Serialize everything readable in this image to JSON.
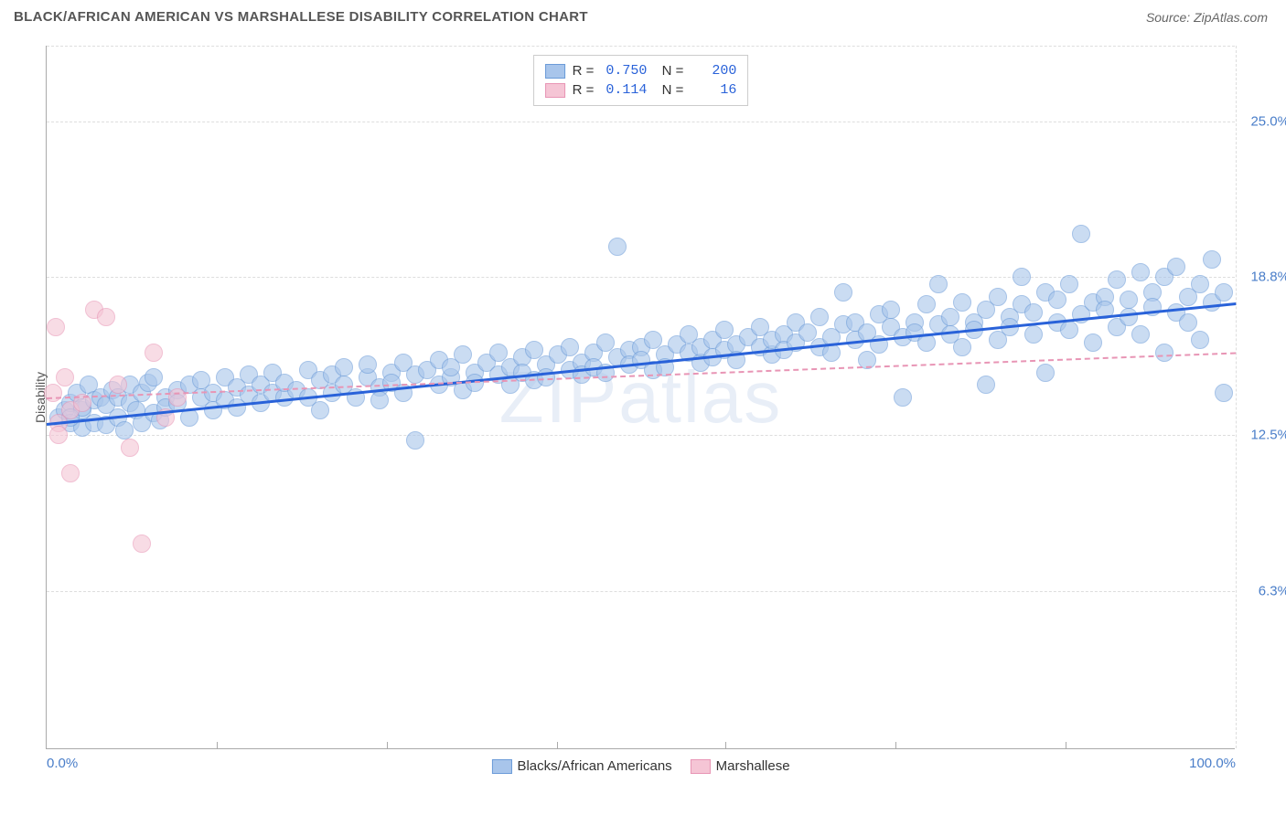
{
  "title": "BLACK/AFRICAN AMERICAN VS MARSHALLESE DISABILITY CORRELATION CHART",
  "source_label": "Source: ZipAtlas.com",
  "watermark": "ZIPatlas",
  "y_axis_label": "Disability",
  "chart": {
    "type": "scatter",
    "xlim": [
      0,
      100
    ],
    "ylim": [
      0,
      28
    ],
    "x_ticks": [
      0,
      100
    ],
    "x_tick_labels": [
      "0.0%",
      "100.0%"
    ],
    "x_minor_ticks": [
      14.3,
      28.6,
      42.9,
      57.1,
      71.4,
      85.7
    ],
    "y_ticks": [
      6.3,
      12.5,
      18.8,
      25.0
    ],
    "y_tick_labels": [
      "6.3%",
      "12.5%",
      "18.8%",
      "25.0%"
    ],
    "background_color": "#ffffff",
    "grid_color": "#dddddd",
    "series": [
      {
        "name": "Blacks/African Americans",
        "color_fill": "#a8c5eb",
        "color_stroke": "#6b9bd8",
        "fill_opacity": 0.6,
        "marker_radius": 10,
        "trend": {
          "x1": 0,
          "y1": 13.0,
          "x2": 100,
          "y2": 17.8,
          "color": "#2962d9",
          "width": 3,
          "dash": "solid"
        },
        "stats": {
          "R": "0.750",
          "N": "200"
        },
        "legend_swatch_fill": "#a8c5eb",
        "legend_swatch_stroke": "#6b9bd8",
        "points": [
          [
            1,
            13.2
          ],
          [
            1.5,
            13.5
          ],
          [
            2,
            13.0
          ],
          [
            2,
            13.8
          ],
          [
            2.5,
            14.2
          ],
          [
            3,
            12.8
          ],
          [
            3,
            13.5
          ],
          [
            3.5,
            14.5
          ],
          [
            3,
            13.6
          ],
          [
            2,
            13.2
          ],
          [
            4,
            13.0
          ],
          [
            4,
            13.9
          ],
          [
            4.5,
            14.0
          ],
          [
            5,
            12.9
          ],
          [
            5,
            13.7
          ],
          [
            5.5,
            14.3
          ],
          [
            6,
            13.2
          ],
          [
            6,
            14.0
          ],
          [
            6.5,
            12.7
          ],
          [
            7,
            13.8
          ],
          [
            7,
            14.5
          ],
          [
            7.5,
            13.5
          ],
          [
            8,
            14.2
          ],
          [
            8,
            13.0
          ],
          [
            8.5,
            14.6
          ],
          [
            9,
            13.4
          ],
          [
            9,
            14.8
          ],
          [
            9.5,
            13.1
          ],
          [
            10,
            14.0
          ],
          [
            10,
            13.6
          ],
          [
            11,
            14.3
          ],
          [
            11,
            13.8
          ],
          [
            12,
            14.5
          ],
          [
            12,
            13.2
          ],
          [
            13,
            14.0
          ],
          [
            13,
            14.7
          ],
          [
            14,
            13.5
          ],
          [
            14,
            14.2
          ],
          [
            15,
            14.8
          ],
          [
            15,
            13.9
          ],
          [
            16,
            14.4
          ],
          [
            16,
            13.6
          ],
          [
            17,
            14.9
          ],
          [
            17,
            14.1
          ],
          [
            18,
            13.8
          ],
          [
            18,
            14.5
          ],
          [
            19,
            14.2
          ],
          [
            19,
            15.0
          ],
          [
            20,
            14.0
          ],
          [
            20,
            14.6
          ],
          [
            21,
            14.3
          ],
          [
            22,
            15.1
          ],
          [
            22,
            14.0
          ],
          [
            23,
            14.7
          ],
          [
            23,
            13.5
          ],
          [
            24,
            14.9
          ],
          [
            24,
            14.2
          ],
          [
            25,
            14.5
          ],
          [
            25,
            15.2
          ],
          [
            26,
            14.0
          ],
          [
            27,
            14.8
          ],
          [
            27,
            15.3
          ],
          [
            28,
            14.4
          ],
          [
            28,
            13.9
          ],
          [
            29,
            15.0
          ],
          [
            29,
            14.6
          ],
          [
            30,
            15.4
          ],
          [
            30,
            14.2
          ],
          [
            31,
            14.9
          ],
          [
            31,
            12.3
          ],
          [
            32,
            15.1
          ],
          [
            33,
            14.5
          ],
          [
            33,
            15.5
          ],
          [
            34,
            14.8
          ],
          [
            34,
            15.2
          ],
          [
            35,
            14.3
          ],
          [
            35,
            15.7
          ],
          [
            36,
            15.0
          ],
          [
            36,
            14.6
          ],
          [
            37,
            15.4
          ],
          [
            38,
            14.9
          ],
          [
            38,
            15.8
          ],
          [
            39,
            15.2
          ],
          [
            39,
            14.5
          ],
          [
            40,
            15.6
          ],
          [
            40,
            15.0
          ],
          [
            41,
            14.7
          ],
          [
            41,
            15.9
          ],
          [
            42,
            15.3
          ],
          [
            42,
            14.8
          ],
          [
            43,
            15.7
          ],
          [
            44,
            15.1
          ],
          [
            44,
            16.0
          ],
          [
            45,
            15.4
          ],
          [
            45,
            14.9
          ],
          [
            46,
            15.8
          ],
          [
            46,
            15.2
          ],
          [
            47,
            16.2
          ],
          [
            47,
            15.0
          ],
          [
            48,
            15.6
          ],
          [
            48,
            20.0
          ],
          [
            49,
            15.9
          ],
          [
            49,
            15.3
          ],
          [
            50,
            16.0
          ],
          [
            50,
            15.5
          ],
          [
            51,
            15.1
          ],
          [
            51,
            16.3
          ],
          [
            52,
            15.7
          ],
          [
            52,
            15.2
          ],
          [
            53,
            16.1
          ],
          [
            54,
            15.8
          ],
          [
            54,
            16.5
          ],
          [
            55,
            15.4
          ],
          [
            55,
            16.0
          ],
          [
            56,
            16.3
          ],
          [
            56,
            15.6
          ],
          [
            57,
            16.7
          ],
          [
            57,
            15.9
          ],
          [
            58,
            16.1
          ],
          [
            58,
            15.5
          ],
          [
            59,
            16.4
          ],
          [
            60,
            16.0
          ],
          [
            60,
            16.8
          ],
          [
            61,
            15.7
          ],
          [
            61,
            16.3
          ],
          [
            62,
            16.5
          ],
          [
            62,
            15.9
          ],
          [
            63,
            17.0
          ],
          [
            63,
            16.2
          ],
          [
            64,
            16.6
          ],
          [
            65,
            16.0
          ],
          [
            65,
            17.2
          ],
          [
            66,
            16.4
          ],
          [
            66,
            15.8
          ],
          [
            67,
            16.9
          ],
          [
            67,
            18.2
          ],
          [
            68,
            16.3
          ],
          [
            68,
            17.0
          ],
          [
            69,
            16.6
          ],
          [
            69,
            15.5
          ],
          [
            70,
            17.3
          ],
          [
            70,
            16.1
          ],
          [
            71,
            16.8
          ],
          [
            71,
            17.5
          ],
          [
            72,
            16.4
          ],
          [
            72,
            14.0
          ],
          [
            73,
            17.0
          ],
          [
            73,
            16.6
          ],
          [
            74,
            17.7
          ],
          [
            74,
            16.2
          ],
          [
            75,
            16.9
          ],
          [
            75,
            18.5
          ],
          [
            76,
            17.2
          ],
          [
            76,
            16.5
          ],
          [
            77,
            17.8
          ],
          [
            77,
            16.0
          ],
          [
            78,
            17.0
          ],
          [
            78,
            16.7
          ],
          [
            79,
            14.5
          ],
          [
            79,
            17.5
          ],
          [
            80,
            16.3
          ],
          [
            80,
            18.0
          ],
          [
            81,
            17.2
          ],
          [
            81,
            16.8
          ],
          [
            82,
            17.7
          ],
          [
            82,
            18.8
          ],
          [
            83,
            16.5
          ],
          [
            83,
            17.4
          ],
          [
            84,
            18.2
          ],
          [
            84,
            15.0
          ],
          [
            85,
            17.0
          ],
          [
            85,
            17.9
          ],
          [
            86,
            16.7
          ],
          [
            86,
            18.5
          ],
          [
            87,
            17.3
          ],
          [
            87,
            20.5
          ],
          [
            88,
            17.8
          ],
          [
            88,
            16.2
          ],
          [
            89,
            18.0
          ],
          [
            89,
            17.5
          ],
          [
            90,
            16.8
          ],
          [
            90,
            18.7
          ],
          [
            91,
            17.2
          ],
          [
            91,
            17.9
          ],
          [
            92,
            19.0
          ],
          [
            92,
            16.5
          ],
          [
            93,
            18.2
          ],
          [
            93,
            17.6
          ],
          [
            94,
            18.8
          ],
          [
            94,
            15.8
          ],
          [
            95,
            17.4
          ],
          [
            95,
            19.2
          ],
          [
            96,
            18.0
          ],
          [
            96,
            17.0
          ],
          [
            97,
            18.5
          ],
          [
            97,
            16.3
          ],
          [
            98,
            17.8
          ],
          [
            98,
            19.5
          ],
          [
            99,
            18.2
          ],
          [
            99,
            14.2
          ]
        ]
      },
      {
        "name": "Marshallese",
        "color_fill": "#f5c5d5",
        "color_stroke": "#e895b5",
        "fill_opacity": 0.6,
        "marker_radius": 10,
        "trend": {
          "x1": 0,
          "y1": 14.0,
          "x2": 100,
          "y2": 15.8,
          "color": "#e895b5",
          "width": 2,
          "dash": "dashed"
        },
        "stats": {
          "R": "0.114",
          "N": "16"
        },
        "legend_swatch_fill": "#f5c5d5",
        "legend_swatch_stroke": "#e895b5",
        "points": [
          [
            0.5,
            14.2
          ],
          [
            0.8,
            16.8
          ],
          [
            1,
            13.0
          ],
          [
            1,
            12.5
          ],
          [
            1.5,
            14.8
          ],
          [
            2,
            13.5
          ],
          [
            2,
            11.0
          ],
          [
            3,
            13.8
          ],
          [
            4,
            17.5
          ],
          [
            5,
            17.2
          ],
          [
            6,
            14.5
          ],
          [
            7,
            12.0
          ],
          [
            8,
            8.2
          ],
          [
            9,
            15.8
          ],
          [
            10,
            13.2
          ],
          [
            11,
            14.0
          ]
        ]
      }
    ]
  },
  "legend_bottom": [
    {
      "label": "Blacks/African Americans",
      "fill": "#a8c5eb",
      "stroke": "#6b9bd8"
    },
    {
      "label": "Marshallese",
      "fill": "#f5c5d5",
      "stroke": "#e895b5"
    }
  ]
}
